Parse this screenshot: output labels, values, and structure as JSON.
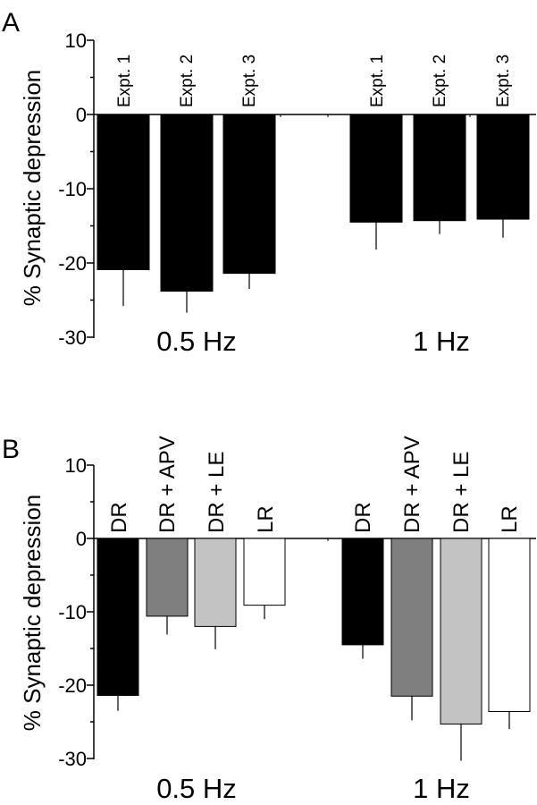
{
  "chart_data": [
    {
      "type": "bar",
      "panel": "A",
      "ylabel": "% Synaptic depression",
      "ylim": [
        -30,
        10
      ],
      "yticks": [
        "10",
        "0",
        "-10",
        "-20",
        "-30"
      ],
      "groups": [
        {
          "label": "0.5 Hz",
          "bars": [
            {
              "label": "Expt. 1",
              "value": -20.9,
              "error": 4.9,
              "color": "#000000"
            },
            {
              "label": "Expt. 2",
              "value": -23.8,
              "error": 2.9,
              "color": "#000000"
            },
            {
              "label": "Expt. 3",
              "value": -21.4,
              "error": 2.1,
              "color": "#000000"
            }
          ]
        },
        {
          "label": "1 Hz",
          "bars": [
            {
              "label": "Expt. 1",
              "value": -14.5,
              "error": 3.7,
              "color": "#000000"
            },
            {
              "label": "Expt. 2",
              "value": -14.3,
              "error": 1.8,
              "color": "#000000"
            },
            {
              "label": "Expt. 3",
              "value": -14.1,
              "error": 2.5,
              "color": "#000000"
            }
          ]
        }
      ]
    },
    {
      "type": "bar",
      "panel": "B",
      "ylabel": "% Synaptic depression",
      "ylim": [
        -30,
        10
      ],
      "yticks": [
        "10",
        "0",
        "-10",
        "-20",
        "-30"
      ],
      "groups": [
        {
          "label": "0.5 Hz",
          "bars": [
            {
              "label": "DR",
              "value": -21.4,
              "error": 2.1,
              "color": "#000000"
            },
            {
              "label": "DR + APV",
              "value": -10.6,
              "error": 2.5,
              "color": "#7f7f7f"
            },
            {
              "label": "DR + LE",
              "value": -12.0,
              "error": 3.1,
              "color": "#c3c3c3"
            },
            {
              "label": "LR",
              "value": -9.1,
              "error": 1.9,
              "color": "#ffffff"
            }
          ]
        },
        {
          "label": "1 Hz",
          "bars": [
            {
              "label": "DR",
              "value": -14.5,
              "error": 1.9,
              "color": "#000000"
            },
            {
              "label": "DR + APV",
              "value": -21.5,
              "error": 3.3,
              "color": "#7f7f7f"
            },
            {
              "label": "DR + LE",
              "value": -25.3,
              "error": 5.0,
              "color": "#c3c3c3"
            },
            {
              "label": "LR",
              "value": -23.6,
              "error": 2.4,
              "color": "#ffffff"
            }
          ]
        }
      ]
    }
  ]
}
